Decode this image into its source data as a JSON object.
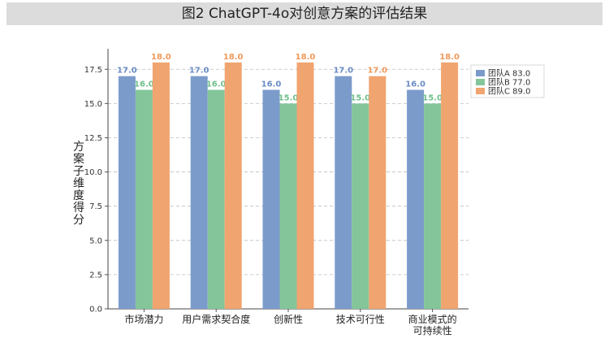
{
  "title": "图2  ChatGPT-4o对创意方案的评估结果",
  "chart_data": {
    "type": "bar",
    "title": "图2  ChatGPT-4o对创意方案的评估结果",
    "xlabel": "",
    "ylabel": "方案子维度得分",
    "ylim": [
      0,
      19
    ],
    "yticks": [
      "0.0",
      "2.5",
      "5.0",
      "7.5",
      "10.0",
      "12.5",
      "15.0",
      "17.5"
    ],
    "grid": "y-dashed",
    "legend_position": "top-right",
    "categories": [
      [
        "市场潜力"
      ],
      [
        "用户需求契合度"
      ],
      [
        "创新性"
      ],
      [
        "技术可行性"
      ],
      [
        "商业模式的",
        "可持续性"
      ]
    ],
    "series": [
      {
        "name": "团队A",
        "total": "83.0",
        "color": "#7b9bcb",
        "labelColor": "#6a8cc5",
        "values": [
          17.0,
          17.0,
          16.0,
          17.0,
          16.0
        ],
        "labels": [
          "17.0",
          "17.0",
          "16.0",
          "17.0",
          "16.0"
        ]
      },
      {
        "name": "团队B",
        "total": "77.0",
        "color": "#84c59a",
        "labelColor": "#6fbf8a",
        "values": [
          16.0,
          16.0,
          15.0,
          15.0,
          15.0
        ],
        "labels": [
          "16.0",
          "16.0",
          "15.0",
          "15.0",
          "15.0"
        ]
      },
      {
        "name": "团队C",
        "total": "89.0",
        "color": "#f0a46f",
        "labelColor": "#ef9a5c",
        "values": [
          18.0,
          18.0,
          18.0,
          17.0,
          18.0
        ],
        "labels": [
          "18.0",
          "18.0",
          "18.0",
          "17.0",
          "18.0"
        ]
      }
    ]
  }
}
